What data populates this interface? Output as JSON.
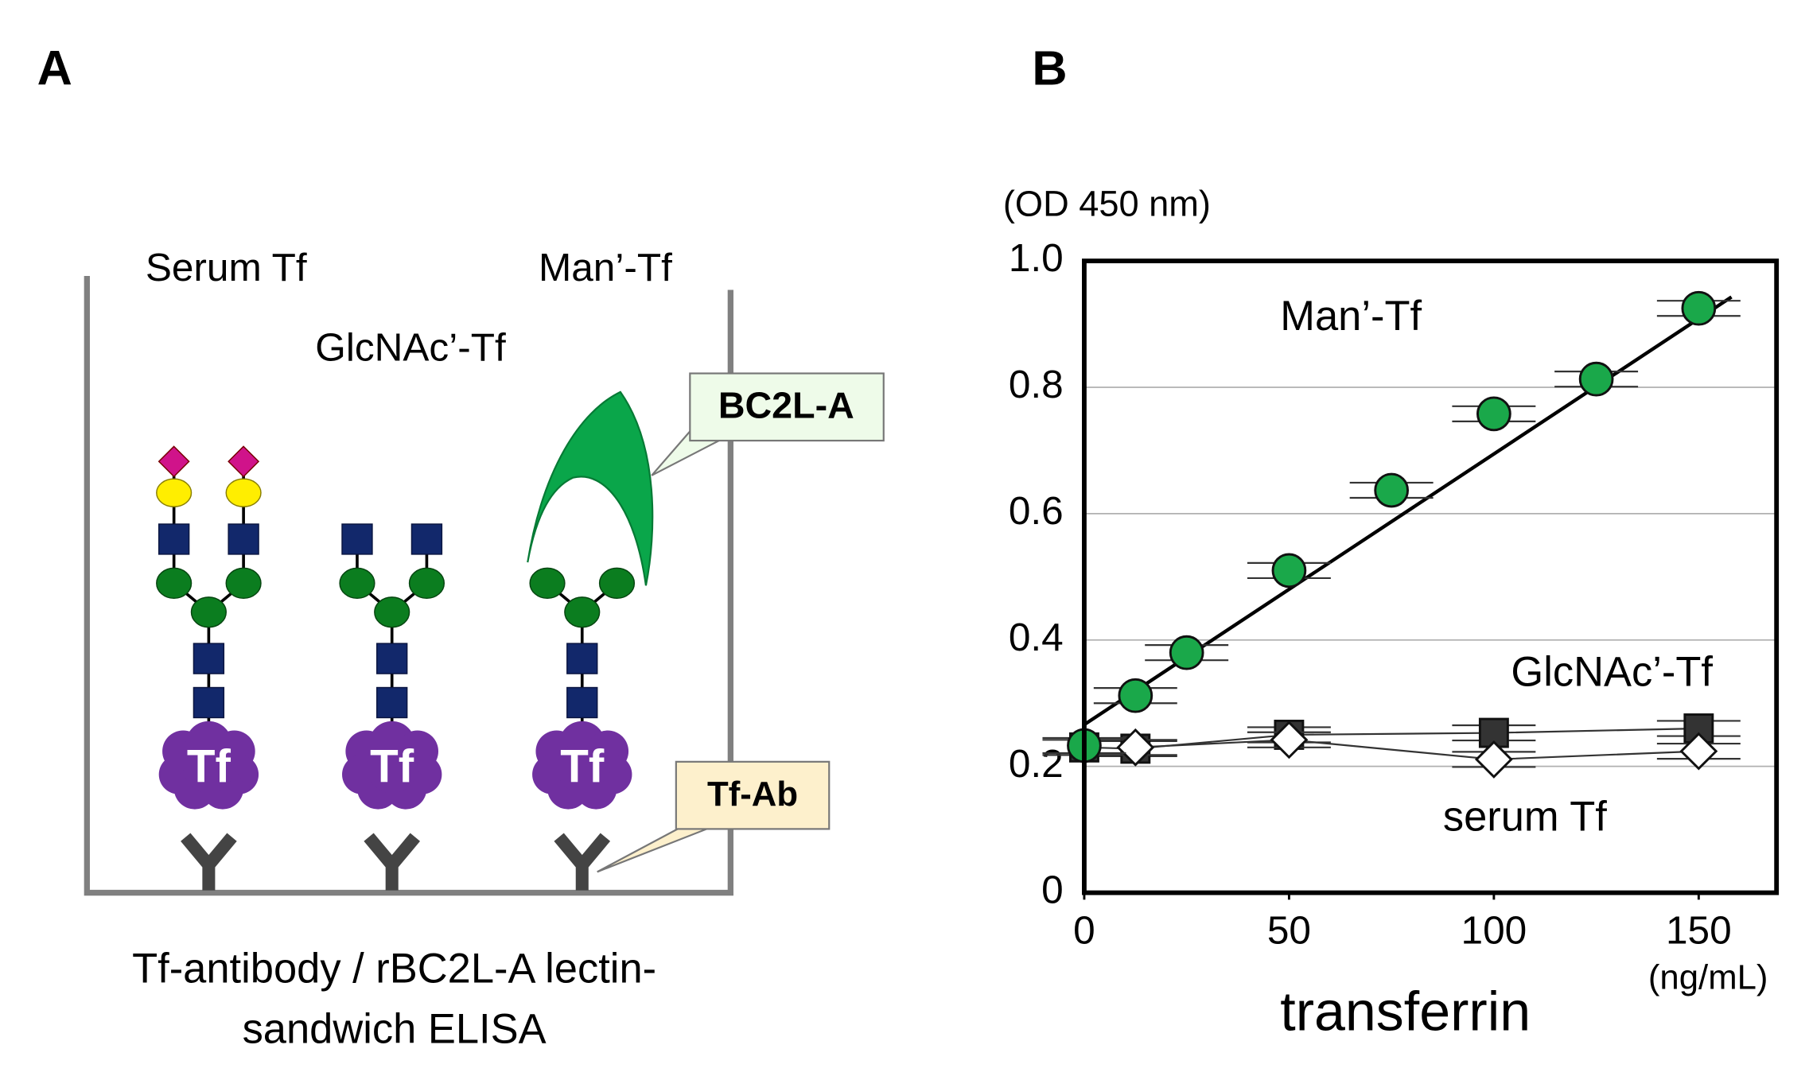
{
  "panel_labels": [
    "A",
    "B"
  ],
  "diagram": {
    "well_labels": [
      "Serum Tf",
      "GlcNAc’-Tf",
      "Man’-Tf"
    ],
    "protein_label": "Tf",
    "lectin_label": "BC2L-A",
    "antibody_label": "Tf-Ab",
    "caption": [
      "Tf-antibody / rBC2L-A lectin-",
      "sandwich ELISA"
    ]
  },
  "chart_data": {
    "type": "scatter",
    "ylabel": "(OD 450 nm)",
    "xlabel": "transferrin",
    "xunit": "(ng/mL)",
    "xlim": [
      0,
      169
    ],
    "ylim": [
      0,
      1
    ],
    "xticks": [
      0,
      50,
      100,
      150
    ],
    "yticks": [
      0,
      0.2,
      0.4,
      0.6,
      0.8,
      {
        "value": 1,
        "label": "1.0"
      }
    ],
    "grid": true,
    "series": [
      {
        "name": "Man’-Tf",
        "color": "#1aa84a",
        "marker": "circle",
        "connect": false,
        "x": [
          0,
          12.5,
          25,
          50,
          75,
          100,
          125,
          150
        ],
        "values": [
          0.233,
          0.312,
          0.38,
          0.51,
          0.637,
          0.758,
          0.813,
          0.925
        ],
        "errors": [
          0.012,
          0.012,
          0.012,
          0.012,
          0.012,
          0.012,
          0.012,
          0.012
        ]
      },
      {
        "name": "GlcNAc’-Tf",
        "color": "#333333",
        "marker": "square",
        "connect": true,
        "x": [
          0,
          12.5,
          50,
          100,
          150
        ],
        "values": [
          0.23,
          0.228,
          0.25,
          0.253,
          0.26
        ],
        "errors": [
          0.012,
          0.012,
          0.012,
          0.012,
          0.012
        ]
      },
      {
        "name": "serum Tf",
        "color": "#ffffff",
        "marker": "diamond",
        "connect": true,
        "x": [
          12.5,
          50,
          100,
          150
        ],
        "values": [
          0.23,
          0.242,
          0.211,
          0.224
        ],
        "errors": [
          0.012,
          0.012,
          0.012,
          0.012
        ]
      }
    ],
    "trendline": {
      "x": [
        0,
        158
      ],
      "values": [
        0.266,
        0.943
      ]
    }
  }
}
